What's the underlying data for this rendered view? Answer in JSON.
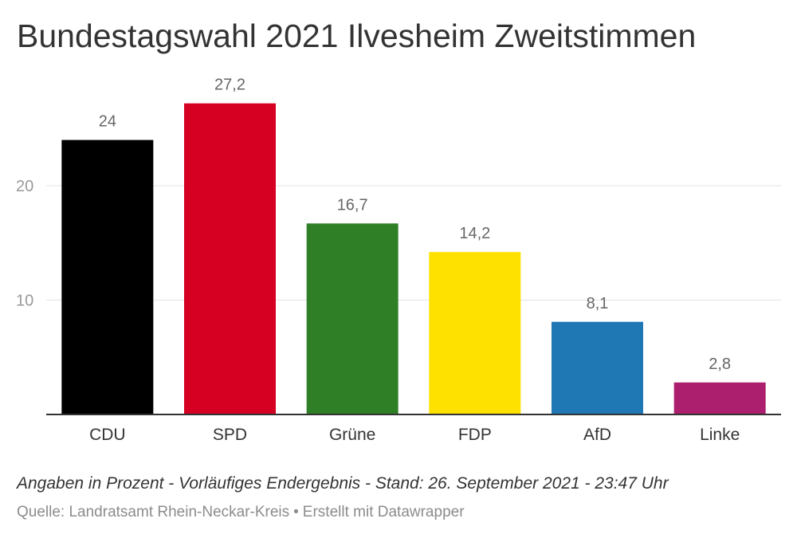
{
  "title": "Bundestagswahl 2021 Ilvesheim Zweitstimmen",
  "notes": "Angaben in Prozent - Vorläufiges Endergebnis - Stand: 26. September 2021 - 23:47 Uhr",
  "source": {
    "label": "Quelle: Landratsamt Rhein-Neckar-Kreis",
    "separator": "•",
    "credit": "Erstellt mit Datawrapper"
  },
  "chart_data": {
    "type": "bar",
    "title": "Bundestagswahl 2021 Ilvesheim Zweitstimmen",
    "xlabel": "",
    "ylabel": "",
    "categories": [
      "CDU",
      "SPD",
      "Grüne",
      "FDP",
      "AfD",
      "Linke"
    ],
    "values": [
      24,
      27.2,
      16.7,
      14.2,
      8.1,
      2.8
    ],
    "value_labels": [
      "24",
      "27,2",
      "16,7",
      "14,2",
      "8,1",
      "2,8"
    ],
    "colors": [
      "#000000",
      "#d50022",
      "#2f7f27",
      "#ffe100",
      "#1f78b4",
      "#ab1f6e"
    ],
    "yticks": [
      10,
      20
    ],
    "ytick_labels": [
      "10",
      "20"
    ],
    "ylim": [
      0,
      30
    ],
    "grid": true,
    "legend": "none"
  }
}
